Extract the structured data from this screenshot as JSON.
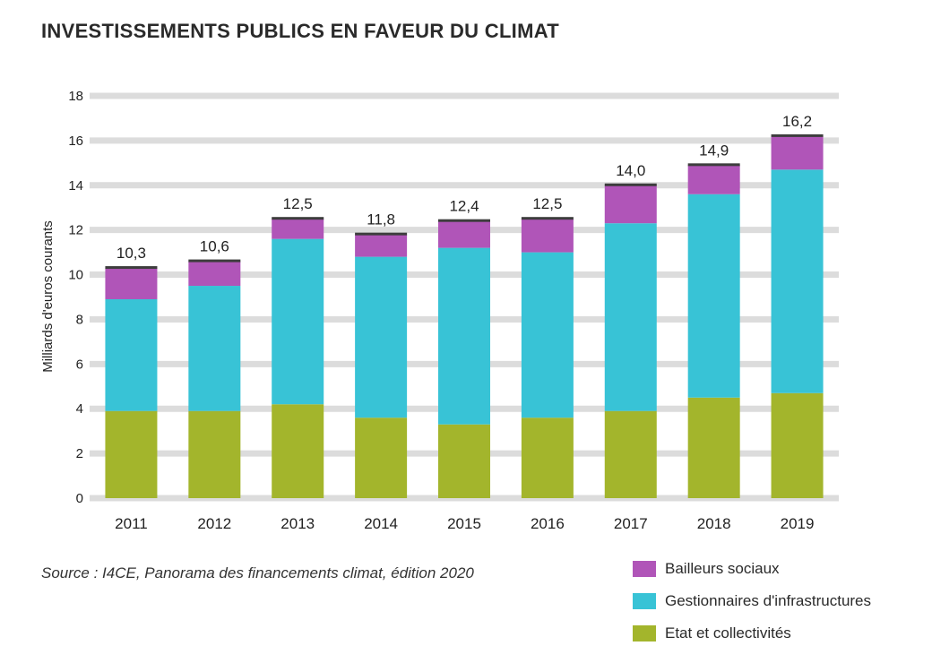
{
  "title": "INVESTISSEMENTS PUBLICS EN FAVEUR DU CLIMAT",
  "source": "Source : I4CE, Panorama des financements climat, édition 2020",
  "colors": {
    "etat": "#a3b52c",
    "gestionnaires": "#38c3d6",
    "bailleurs": "#b055b8",
    "grid": "#dcdcdc"
  },
  "chart_data": {
    "type": "bar",
    "stacked": true,
    "title": "INVESTISSEMENTS PUBLICS EN FAVEUR DU CLIMAT",
    "xlabel": "",
    "ylabel": "Milliards d'euros courants",
    "ylim": [
      0,
      18
    ],
    "yticks": [
      0,
      2,
      4,
      6,
      8,
      10,
      12,
      14,
      16,
      18
    ],
    "grid": true,
    "categories": [
      "2011",
      "2012",
      "2013",
      "2014",
      "2015",
      "2016",
      "2017",
      "2018",
      "2019"
    ],
    "series": [
      {
        "name": "Etat et collectivités",
        "key": "etat",
        "values": [
          3.9,
          3.9,
          4.2,
          3.6,
          3.3,
          3.6,
          3.9,
          4.5,
          4.7
        ]
      },
      {
        "name": "Gestionnaires d'infrastructures",
        "key": "gestionnaires",
        "values": [
          5.0,
          5.6,
          7.4,
          7.2,
          7.9,
          7.4,
          8.4,
          9.1,
          10.0
        ]
      },
      {
        "name": "Bailleurs sociaux",
        "key": "bailleurs",
        "values": [
          1.4,
          1.1,
          0.9,
          1.0,
          1.2,
          1.5,
          1.7,
          1.3,
          1.5
        ]
      }
    ],
    "totals": [
      "10,3",
      "10,6",
      "12,5",
      "11,8",
      "12,4",
      "12,5",
      "14,0",
      "14,9",
      "16,2"
    ],
    "legend_position": "bottom-right"
  },
  "legend": [
    {
      "label": "Bailleurs sociaux",
      "key": "bailleurs"
    },
    {
      "label": "Gestionnaires d'infrastructures",
      "key": "gestionnaires"
    },
    {
      "label": "Etat et collectivités",
      "key": "etat"
    }
  ]
}
